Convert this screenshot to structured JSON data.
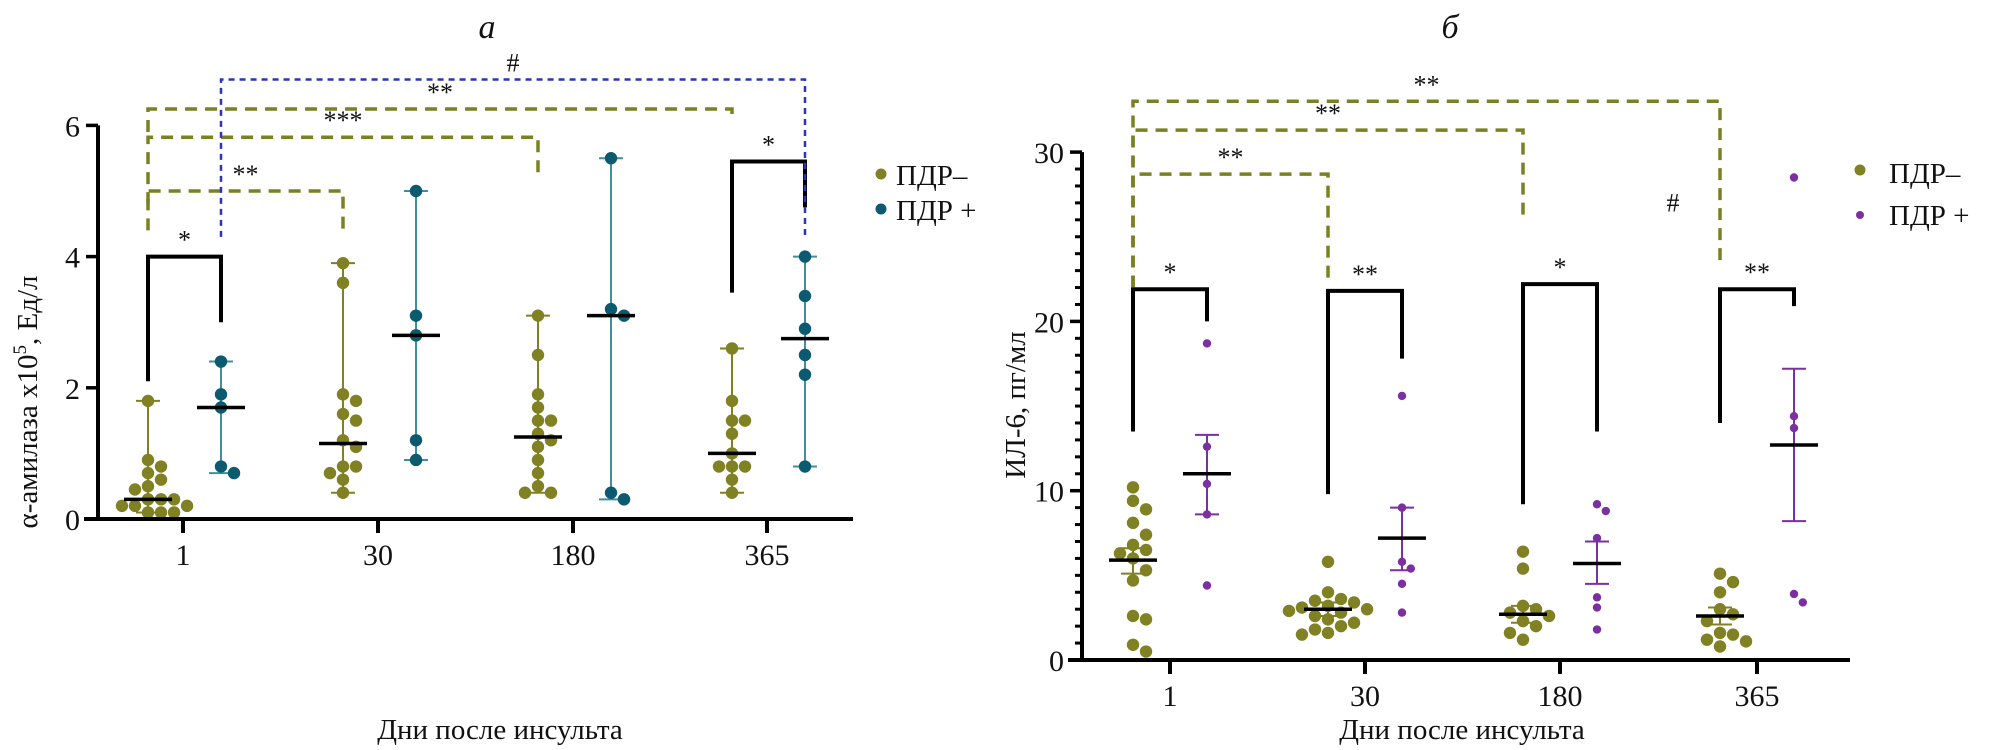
{
  "colors": {
    "pdr_minus": "#7f8123",
    "pdr_plus_a": "#0b5a70",
    "pdr_plus_a_line": "#3f8f9f",
    "pdr_plus_b": "#7b2fa0",
    "sig_dashed_green": "#7a8120",
    "sig_dashed_blue": "#2b36b3",
    "axis": "#000000"
  },
  "chart_data": [
    {
      "panel": "a",
      "title": "а",
      "type": "scatter",
      "ylabel_main": "α-амилаза x10",
      "ylabel_sup": "5",
      "ylabel_tail": ", Ед/л",
      "xlabel": "Дни после инсульта",
      "categories": [
        "1",
        "30",
        "180",
        "365"
      ],
      "ylim": [
        0,
        6
      ],
      "yticks": [
        "0",
        "2",
        "4",
        "6"
      ],
      "summary": "median with range",
      "legend": [
        {
          "label": "ПДР–",
          "series": "pdr_minus"
        },
        {
          "label": "ПДР +",
          "series": "pdr_plus"
        }
      ],
      "legend_position": "right",
      "series": [
        {
          "name": "ПДР–",
          "key": "pdr_minus",
          "groups": [
            {
              "points": [
                1.8,
                0.9,
                0.8,
                0.7,
                0.6,
                0.5,
                0.45,
                0.3,
                0.3,
                0.3,
                0.2,
                0.2,
                0.2,
                0.1,
                0.1,
                0.1
              ],
              "center": 0.3,
              "low": 0.1,
              "high": 1.8
            },
            {
              "points": [
                3.9,
                3.6,
                1.9,
                1.8,
                1.6,
                1.5,
                1.2,
                1.1,
                0.8,
                0.8,
                0.7,
                0.6,
                0.4
              ],
              "center": 1.15,
              "low": 0.4,
              "high": 3.9
            },
            {
              "points": [
                3.1,
                2.5,
                1.9,
                1.7,
                1.5,
                1.5,
                1.3,
                1.2,
                1.1,
                0.9,
                0.7,
                0.5,
                0.4,
                0.4
              ],
              "center": 1.25,
              "low": 0.4,
              "high": 3.1
            },
            {
              "points": [
                2.6,
                1.8,
                1.5,
                1.5,
                1.3,
                1.0,
                0.8,
                0.8,
                0.8,
                0.6,
                0.4
              ],
              "center": 1.0,
              "low": 0.4,
              "high": 2.6
            }
          ]
        },
        {
          "name": "ПДР +",
          "key": "pdr_plus",
          "groups": [
            {
              "points": [
                2.4,
                1.9,
                1.7,
                0.8,
                0.7
              ],
              "center": 1.7,
              "low": 0.7,
              "high": 2.4
            },
            {
              "points": [
                5.0,
                3.1,
                2.8,
                1.2,
                0.9
              ],
              "center": 2.8,
              "low": 0.9,
              "high": 5.0
            },
            {
              "points": [
                5.5,
                3.2,
                3.1,
                0.4,
                0.3
              ],
              "center": 3.1,
              "low": 0.3,
              "high": 5.5
            },
            {
              "points": [
                4.0,
                3.4,
                2.9,
                2.5,
                2.2,
                0.8
              ],
              "center": 2.75,
              "low": 0.8,
              "high": 4.0
            }
          ]
        }
      ],
      "annotations": [
        {
          "label": "*",
          "style": "solid",
          "from": [
            0,
            "pdr_minus"
          ],
          "to": [
            0,
            "pdr_plus"
          ],
          "y": 4.0,
          "left_end": 2.1,
          "right_end": 3.0
        },
        {
          "label": "*",
          "style": "solid",
          "from": [
            3,
            "pdr_minus"
          ],
          "to": [
            3,
            "pdr_plus"
          ],
          "y": 5.45,
          "left_end": 3.45,
          "right_end": 4.75
        },
        {
          "label": "**",
          "style": "dashed-green",
          "from": [
            0,
            "pdr_minus"
          ],
          "to": [
            1,
            "pdr_minus"
          ],
          "y": 5.0,
          "left_end": 4.4,
          "right_end": 4.4
        },
        {
          "label": "***",
          "style": "dashed-green",
          "from": [
            0,
            "pdr_minus"
          ],
          "to": [
            2,
            "pdr_minus"
          ],
          "y": 5.82,
          "left_end": 4.8,
          "right_end": 5.2
        },
        {
          "label": "**",
          "style": "dashed-green",
          "from": [
            0,
            "pdr_minus"
          ],
          "to": [
            3,
            "pdr_minus"
          ],
          "y": 6.25,
          "left_end": 5.9,
          "right_end": 6.1
        },
        {
          "label": "#",
          "style": "dashed-blue",
          "from": [
            0,
            "pdr_plus"
          ],
          "to": [
            3,
            "pdr_plus"
          ],
          "y": 6.7,
          "left_end": 4.3,
          "right_end": 4.3
        }
      ]
    },
    {
      "panel": "б",
      "title": "б",
      "type": "scatter",
      "ylabel": "ИЛ-6, пг/мл",
      "xlabel": "Дни после инсульта",
      "categories": [
        "1",
        "30",
        "180",
        "365"
      ],
      "ylim": [
        0,
        30
      ],
      "yticks": [
        "0",
        "10",
        "20",
        "30"
      ],
      "minor_tick_step": 1,
      "summary": "mean ± SEM",
      "legend": [
        {
          "label": "ПДР–",
          "series": "pdr_minus"
        },
        {
          "label": "ПДР +",
          "series": "pdr_plus"
        }
      ],
      "legend_position": "right",
      "series": [
        {
          "name": "ПДР–",
          "key": "pdr_minus",
          "groups": [
            {
              "points": [
                10.2,
                9.4,
                8.9,
                8.1,
                7.4,
                6.8,
                6.5,
                6.3,
                6.0,
                5.3,
                4.7,
                2.6,
                2.4,
                0.9,
                0.5
              ],
              "center": 5.9,
              "low": 5.1,
              "high": 6.6
            },
            {
              "points": [
                5.8,
                4.0,
                3.6,
                3.5,
                3.4,
                3.2,
                3.1,
                3.0,
                2.9,
                2.8,
                2.6,
                2.4,
                2.2,
                2.0,
                1.8,
                1.6,
                1.5
              ],
              "center": 3.0,
              "low": 2.6,
              "high": 3.4
            },
            {
              "points": [
                6.4,
                5.4,
                3.2,
                3.0,
                2.8,
                2.6,
                2.3,
                2.0,
                1.6,
                1.2
              ],
              "center": 2.7,
              "low": 2.2,
              "high": 3.2
            },
            {
              "points": [
                5.1,
                4.6,
                4.0,
                3.0,
                2.7,
                2.3,
                1.6,
                1.5,
                1.2,
                1.1,
                0.8
              ],
              "center": 2.6,
              "low": 2.1,
              "high": 3.1
            }
          ]
        },
        {
          "name": "ПДР +",
          "key": "pdr_plus",
          "groups": [
            {
              "points": [
                18.7,
                12.6,
                10.4,
                8.6,
                4.4
              ],
              "center": 11.0,
              "low": 8.6,
              "high": 13.3
            },
            {
              "points": [
                15.6,
                9.0,
                5.8,
                5.4,
                4.5,
                2.8
              ],
              "center": 7.2,
              "low": 5.3,
              "high": 9.0
            },
            {
              "points": [
                9.2,
                8.8,
                7.2,
                3.7,
                3.1,
                1.8
              ],
              "center": 5.7,
              "low": 4.5,
              "high": 7.0
            },
            {
              "points": [
                28.5,
                14.4,
                13.7,
                3.9,
                3.4
              ],
              "center": 12.7,
              "low": 8.2,
              "high": 17.2
            }
          ]
        }
      ],
      "annotations": [
        {
          "label": "*",
          "style": "solid",
          "from": [
            0,
            "pdr_minus"
          ],
          "to": [
            0,
            "pdr_plus"
          ],
          "y": 21.9,
          "left_end": 13.5,
          "right_end": 20.0
        },
        {
          "label": "**",
          "style": "solid",
          "from": [
            1,
            "pdr_minus"
          ],
          "to": [
            1,
            "pdr_plus"
          ],
          "y": 21.8,
          "left_end": 9.8,
          "right_end": 17.8
        },
        {
          "label": "*",
          "style": "solid",
          "from": [
            2,
            "pdr_minus"
          ],
          "to": [
            2,
            "pdr_plus"
          ],
          "y": 22.2,
          "left_end": 9.2,
          "right_end": 13.5
        },
        {
          "label": "**",
          "style": "solid",
          "from": [
            3,
            "pdr_minus"
          ],
          "to": [
            3,
            "pdr_plus"
          ],
          "y": 21.9,
          "left_end": 14.0,
          "right_end": 20.9
        },
        {
          "label": "**",
          "style": "dashed-green",
          "from": [
            0,
            "pdr_minus"
          ],
          "to": [
            1,
            "pdr_minus"
          ],
          "y": 28.7,
          "left_end": 22.0,
          "right_end": 22.5
        },
        {
          "label": "**",
          "style": "dashed-green",
          "from": [
            0,
            "pdr_minus"
          ],
          "to": [
            2,
            "pdr_minus"
          ],
          "y": 31.3,
          "left_end": 22.0,
          "right_end": 26.3
        },
        {
          "label": "**",
          "style": "dashed-green",
          "from": [
            0,
            "pdr_minus"
          ],
          "to": [
            3,
            "pdr_minus"
          ],
          "y": 33.0,
          "left_end": 22.0,
          "right_end": 23.3
        }
      ],
      "extra_marks": [
        {
          "label": "#",
          "near": [
            2,
            "pdr_minus"
          ],
          "y": 26.5
        }
      ]
    }
  ]
}
